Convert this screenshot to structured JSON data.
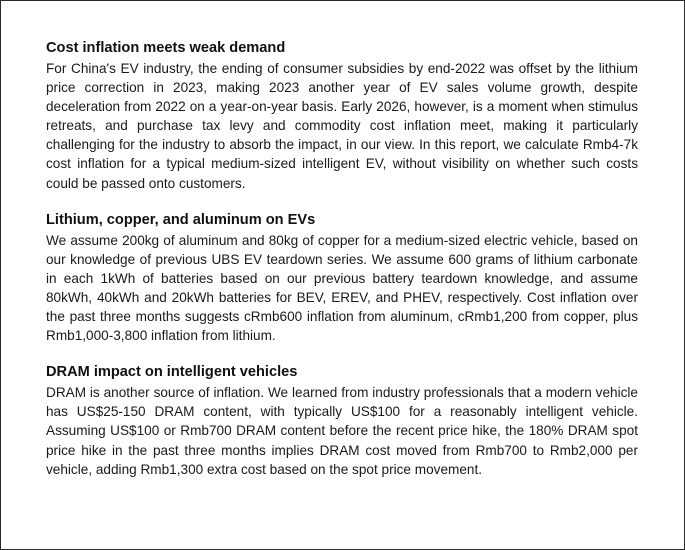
{
  "sections": [
    {
      "title": "Cost inflation meets weak demand",
      "body": "For China's EV industry, the ending of consumer subsidies by end-2022 was offset by the lithium price correction in 2023, making 2023 another year of EV sales volume growth, despite deceleration from 2022 on a year-on-year basis. Early 2026, however, is a moment when stimulus retreats, and purchase tax levy and commodity cost inflation meet, making it particularly challenging for the industry to absorb the impact, in our view. In this report, we calculate Rmb4-7k cost inflation for a typical medium-sized intelligent EV, without visibility on whether such costs could be passed onto customers."
    },
    {
      "title": "Lithium, copper, and aluminum on EVs",
      "body": "We assume 200kg of aluminum and 80kg of copper for a medium-sized electric vehicle, based on our knowledge of previous UBS EV teardown series. We assume 600 grams of lithium carbonate in each 1kWh of batteries based on our previous battery teardown knowledge, and assume 80kWh, 40kWh and 20kWh batteries for BEV, EREV, and PHEV, respectively. Cost inflation over the past three months suggests cRmb600 inflation from aluminum, cRmb1,200 from copper, plus Rmb1,000-3,800 inflation from lithium."
    },
    {
      "title": "DRAM impact on intelligent vehicles",
      "body": "DRAM is another source of inflation. We learned from industry professionals that a modern vehicle has US$25-150 DRAM content, with typically US$100 for a reasonably intelligent vehicle. Assuming US$100 or Rmb700 DRAM content before the recent price hike, the 180% DRAM spot price hike in the past three months implies DRAM cost moved from Rmb700 to Rmb2,000 per vehicle, adding Rmb1,300 extra cost based on the spot price movement."
    }
  ]
}
